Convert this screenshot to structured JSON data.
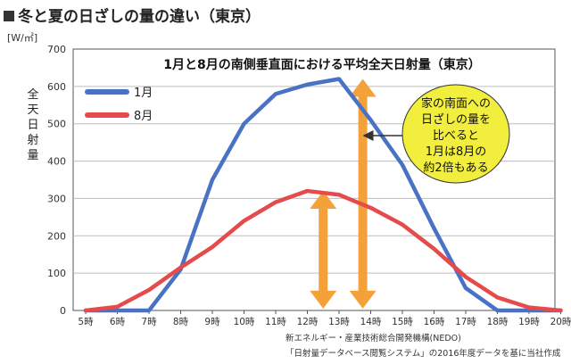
{
  "heading": {
    "title": "冬と夏の日ざしの量の違い（東京）"
  },
  "chart_data": {
    "type": "line",
    "title": "1月と8月の南側垂直面における平均全天日射量（東京）",
    "unit": "[W/㎡]",
    "ylabel": "全天日射量",
    "ylim": [
      0,
      700
    ],
    "yticks": [
      0,
      100,
      200,
      300,
      400,
      500,
      600,
      700
    ],
    "categories": [
      "5時",
      "6時",
      "7時",
      "8時",
      "9時",
      "10時",
      "11時",
      "12時",
      "13時",
      "14時",
      "15時",
      "16時",
      "17時",
      "18時",
      "19時",
      "20時"
    ],
    "series": [
      {
        "name": "1月",
        "color": "#4a72c4",
        "values": [
          0,
          0,
          0,
          110,
          350,
          500,
          580,
          605,
          620,
          510,
          390,
          220,
          60,
          0,
          0,
          0
        ]
      },
      {
        "name": "8月",
        "color": "#e54b4b",
        "values": [
          0,
          10,
          55,
          115,
          170,
          240,
          290,
          320,
          310,
          275,
          230,
          165,
          90,
          35,
          8,
          0
        ]
      }
    ],
    "grid": true,
    "legend": "top-left",
    "annotation": {
      "lines": [
        "家の南面への",
        "日ざしの量を",
        "比べると",
        "1月は8月の",
        "約2倍もある"
      ],
      "fill": "#f2ee3d"
    },
    "arrow_color": "#f5a13a"
  },
  "source": {
    "line1": "新エネルギー・産業技術総合開発機構(NEDO)",
    "line2": "「日射量データベース閲覧システム」の2016年度データを基に当社作成"
  }
}
